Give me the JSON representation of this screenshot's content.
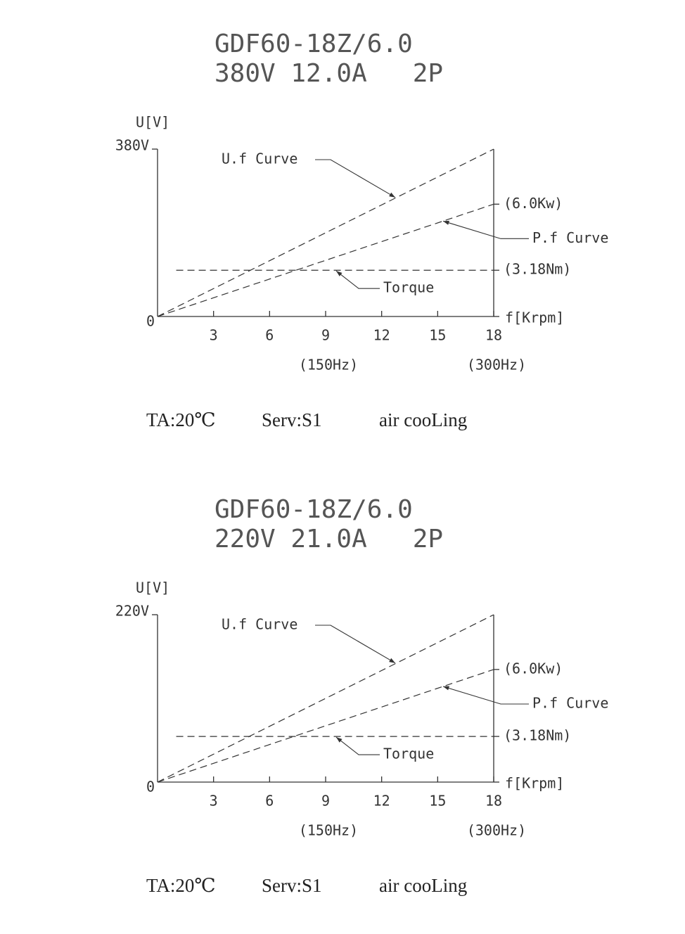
{
  "chart_data": [
    {
      "type": "line",
      "title": "GDF60-18Z/6.0",
      "subtitle": "380V 12.0A   2P",
      "y_label": "U[V]",
      "x_label": "f[Krpm]",
      "origin_label": "0",
      "xlim": [
        0,
        18
      ],
      "xticks": [
        3,
        6,
        9,
        12,
        15,
        18
      ],
      "ylim": [
        0,
        380
      ],
      "yticks": [
        {
          "value": 380,
          "label": "380V"
        }
      ],
      "x_secondary_labels": [
        {
          "value": 9,
          "label": "(150Hz)"
        },
        {
          "value": 18,
          "label": "(300Hz)"
        }
      ],
      "series": [
        {
          "name": "U.f Curve",
          "color": "#333333",
          "x": [
            0,
            18
          ],
          "values": [
            0,
            380
          ]
        },
        {
          "name": "P.f Curve",
          "color": "#333333",
          "x": [
            0,
            18
          ],
          "values": [
            0,
            255
          ],
          "end_label": "(6.0Kw)"
        },
        {
          "name": "Torque",
          "color": "#333333",
          "x": [
            1,
            18
          ],
          "values": [
            105,
            105
          ],
          "end_label": "(3.18Nm)"
        }
      ],
      "conditions": [
        "TA:20℃",
        "Serv:S1",
        "air cooLing"
      ]
    },
    {
      "type": "line",
      "title": "GDF60-18Z/6.0",
      "subtitle": "220V 21.0A   2P",
      "y_label": "U[V]",
      "x_label": "f[Krpm]",
      "origin_label": "0",
      "xlim": [
        0,
        18
      ],
      "xticks": [
        3,
        6,
        9,
        12,
        15,
        18
      ],
      "ylim": [
        0,
        220
      ],
      "yticks": [
        {
          "value": 220,
          "label": "220V"
        }
      ],
      "x_secondary_labels": [
        {
          "value": 9,
          "label": "(150Hz)"
        },
        {
          "value": 18,
          "label": "(300Hz)"
        }
      ],
      "series": [
        {
          "name": "U.f Curve",
          "color": "#333333",
          "x": [
            0,
            18
          ],
          "values": [
            0,
            220
          ]
        },
        {
          "name": "P.f Curve",
          "color": "#333333",
          "x": [
            0,
            18
          ],
          "values": [
            0,
            148
          ],
          "end_label": "(6.0Kw)"
        },
        {
          "name": "Torque",
          "color": "#333333",
          "x": [
            1,
            18
          ],
          "values": [
            60,
            60
          ],
          "end_label": "(3.18Nm)"
        }
      ],
      "conditions": [
        "TA:20℃",
        "Serv:S1",
        "air cooLing"
      ]
    }
  ]
}
